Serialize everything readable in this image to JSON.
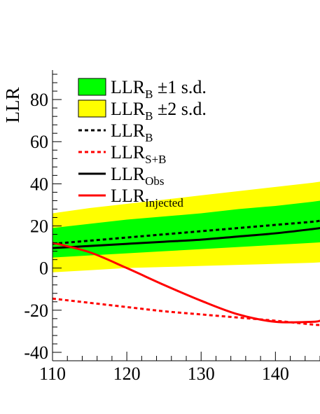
{
  "chart_data": {
    "type": "line",
    "title": "",
    "ylabel": "LLR",
    "xlabel": "",
    "xlim": [
      110,
      146
    ],
    "ylim": [
      -44,
      94
    ],
    "x_ticks": [
      "110",
      "120",
      "130",
      "140"
    ],
    "y_ticks": [
      "-40",
      "-20",
      "0",
      "20",
      "40",
      "60",
      "80"
    ],
    "grid": false,
    "legend_placement": "top-left",
    "legend": [
      {
        "kind": "fill",
        "color": "#00ff00",
        "text": "LLR",
        "sub": "B",
        "suffix": "  ±1 s.d."
      },
      {
        "kind": "fill",
        "color": "#ffff00",
        "text": "LLR",
        "sub": "B",
        "suffix": "  ±2 s.d."
      },
      {
        "kind": "line",
        "color": "#000000",
        "dash": "dotted",
        "text": "LLR",
        "sub": "B",
        "suffix": ""
      },
      {
        "kind": "line",
        "color": "#ff0000",
        "dash": "dotted",
        "text": "LLR",
        "sub": "S+B",
        "suffix": ""
      },
      {
        "kind": "line",
        "color": "#000000",
        "dash": "solid",
        "text": "LLR",
        "sub": "Obs",
        "suffix": ""
      },
      {
        "kind": "line",
        "color": "#ff0000",
        "dash": "solid",
        "text": "LLR",
        "sub": "Injected",
        "suffix": ""
      }
    ],
    "x": [
      110,
      115,
      120,
      125,
      130,
      135,
      140,
      145,
      146
    ],
    "bands": [
      {
        "name": "LLR_B ±2 s.d.",
        "color": "#ffff00",
        "lower": [
          -2,
          -1,
          0,
          0.5,
          1,
          1.5,
          2,
          2.5,
          2.7
        ],
        "upper": [
          26,
          28.5,
          30.5,
          32.5,
          34.5,
          36.5,
          38.5,
          40.5,
          41
        ]
      },
      {
        "name": "LLR_B ±1 s.d.",
        "color": "#00ff00",
        "lower": [
          5,
          6,
          7,
          8,
          9,
          10,
          11,
          12,
          12.2
        ],
        "upper": [
          19,
          21,
          23,
          24.5,
          26,
          28,
          29.5,
          31.5,
          32
        ]
      }
    ],
    "series": [
      {
        "name": "LLR_B",
        "color": "#000000",
        "dash": "dotted",
        "values": [
          11.5,
          13,
          14.5,
          16,
          17.5,
          19,
          20.5,
          22,
          22.5
        ]
      },
      {
        "name": "LLR_S+B",
        "color": "#ff0000",
        "dash": "dotted",
        "values": [
          -14.5,
          -16.5,
          -18.5,
          -20.5,
          -22,
          -23.5,
          -25,
          -26.8,
          -27
        ]
      },
      {
        "name": "LLR_Obs",
        "color": "#000000",
        "dash": "solid",
        "values": [
          9.5,
          10.5,
          11.5,
          12.5,
          13.5,
          15,
          16.5,
          18.5,
          19
        ]
      },
      {
        "name": "LLR_Injected",
        "color": "#ff0000",
        "dash": "solid",
        "values": [
          12,
          7.5,
          0,
          -8,
          -15.5,
          -22,
          -25.5,
          -25.5,
          -25
        ]
      }
    ]
  }
}
